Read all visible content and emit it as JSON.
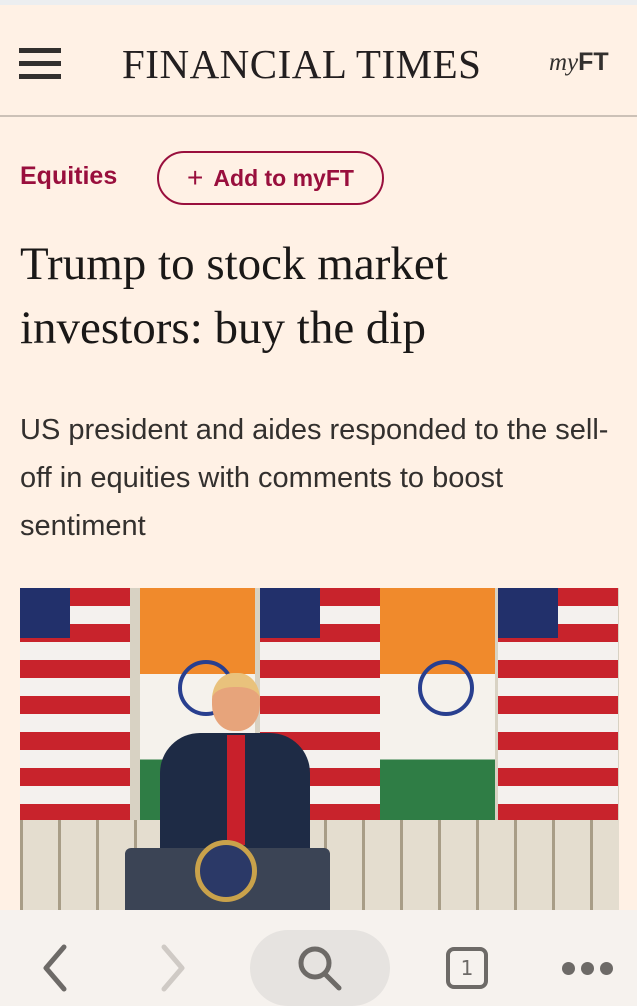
{
  "header": {
    "logo": "FINANCIAL TIMES",
    "myft_my": "my",
    "myft_ft": "FT"
  },
  "article": {
    "topic": "Equities",
    "add_button": {
      "plus": "+",
      "label": "Add to myFT"
    },
    "headline": "Trump to stock market investors: buy the dip",
    "standfirst": "US president and aides responded to the sell-off in equities with comments to boost sentiment"
  },
  "colors": {
    "background": "#fff1e5",
    "accent": "#990f3d",
    "text": "#33302e"
  },
  "browser": {
    "tab_count": "1",
    "icons": [
      "back-icon",
      "forward-icon",
      "search-icon",
      "tabs-icon",
      "more-icon"
    ]
  }
}
